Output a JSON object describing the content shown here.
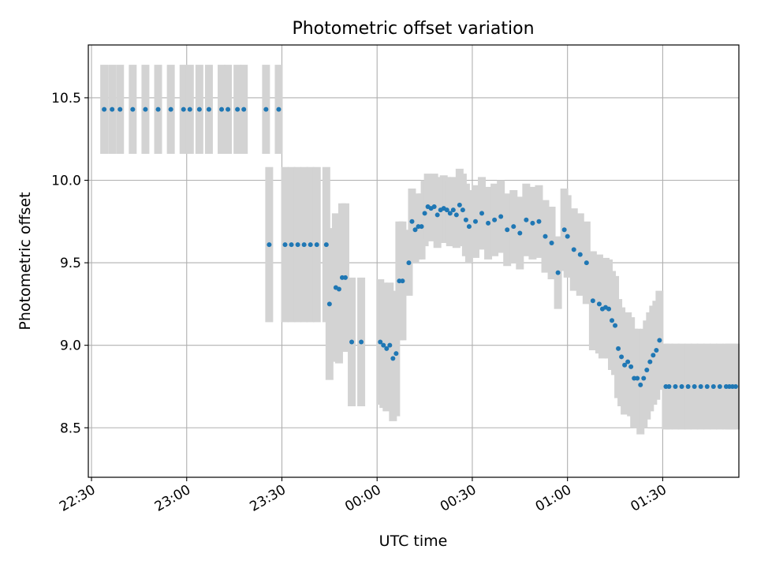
{
  "chart_data": {
    "type": "scatter",
    "title": "Photometric offset variation",
    "xlabel": "UTC time",
    "ylabel": "Photometric offset",
    "x_units": "minutes after 22:30 UTC",
    "xlim": [
      -1,
      204
    ],
    "ylim": [
      8.2,
      10.82
    ],
    "x_ticks": [
      {
        "value": 0,
        "label": "22:30"
      },
      {
        "value": 30,
        "label": "23:00"
      },
      {
        "value": 60,
        "label": "23:30"
      },
      {
        "value": 90,
        "label": "00:00"
      },
      {
        "value": 120,
        "label": "00:30"
      },
      {
        "value": 150,
        "label": "01:00"
      },
      {
        "value": 180,
        "label": "01:30"
      }
    ],
    "y_ticks": [
      {
        "value": 8.5,
        "label": "8.5"
      },
      {
        "value": 9.0,
        "label": "9.0"
      },
      {
        "value": 9.5,
        "label": "9.5"
      },
      {
        "value": 10.0,
        "label": "10.0"
      },
      {
        "value": 10.5,
        "label": "10.5"
      }
    ],
    "grid": true,
    "colors": {
      "points": "#1f77b4",
      "error_bars": "#d3d3d3",
      "grid": "#b0b0b0"
    },
    "series": [
      {
        "x": [
          4.0,
          6.5,
          9.0,
          13.0,
          17.0,
          21.0,
          25.0,
          29.0,
          31.0,
          34.0,
          37.0,
          41.0,
          43.0,
          46.0,
          48.0,
          55.0,
          59.0
        ],
        "y": [
          10.43,
          10.43,
          10.43,
          10.43,
          10.43,
          10.43,
          10.43,
          10.43,
          10.43,
          10.43,
          10.43,
          10.43,
          10.43,
          10.43,
          10.43,
          10.43,
          10.43
        ],
        "err": [
          0.27,
          0.27,
          0.27,
          0.27,
          0.27,
          0.27,
          0.27,
          0.27,
          0.27,
          0.27,
          0.27,
          0.27,
          0.27,
          0.27,
          0.27,
          0.27,
          0.27
        ]
      },
      {
        "x": [
          56.0,
          61.0,
          63.0,
          65.0,
          67.0,
          69.0,
          71.0,
          74.0,
          75.0,
          77.0,
          78.0,
          79.0,
          80.0,
          82.0,
          85.0
        ],
        "y": [
          9.61,
          9.61,
          9.61,
          9.61,
          9.61,
          9.61,
          9.61,
          9.61,
          9.25,
          9.35,
          9.34,
          9.41,
          9.41,
          9.02,
          9.02
        ],
        "err": [
          0.47,
          0.47,
          0.47,
          0.47,
          0.47,
          0.47,
          0.47,
          0.47,
          0.46,
          0.45,
          0.45,
          0.45,
          0.45,
          0.39,
          0.39
        ]
      },
      {
        "x": [
          91.0,
          92.0,
          93.0,
          94.0,
          95.0,
          96.0,
          97.0,
          98.0,
          100.0,
          101.0,
          102.0,
          103.0,
          104.0,
          105.0,
          106.0,
          107.0,
          108.0,
          109.0,
          110.0,
          111.0,
          112.0,
          113.0,
          114.0,
          115.0,
          116.0,
          117.0,
          118.0,
          119.0,
          121.0,
          123.0,
          125.0,
          127.0,
          129.0,
          131.0,
          133.0,
          135.0,
          137.0,
          139.0,
          141.0,
          143.0,
          145.0,
          147.0,
          149.0,
          150.0,
          152.0,
          154.0,
          156.0,
          158.0,
          160.0,
          161.0,
          162.0,
          163.0,
          164.0,
          165.0,
          166.0,
          167.0,
          168.0,
          169.0,
          170.0,
          171.0,
          172.0,
          173.0,
          174.0,
          175.0,
          176.0,
          177.0,
          178.0,
          179.0
        ],
        "y": [
          9.02,
          9.0,
          8.98,
          9.0,
          8.92,
          8.95,
          9.39,
          9.39,
          9.5,
          9.75,
          9.7,
          9.72,
          9.72,
          9.8,
          9.84,
          9.83,
          9.84,
          9.79,
          9.82,
          9.83,
          9.82,
          9.8,
          9.82,
          9.79,
          9.85,
          9.82,
          9.76,
          9.72,
          9.75,
          9.8,
          9.74,
          9.76,
          9.78,
          9.7,
          9.72,
          9.68,
          9.76,
          9.74,
          9.75,
          9.66,
          9.62,
          9.44,
          9.7,
          9.66,
          9.58,
          9.55,
          9.5,
          9.27,
          9.25,
          9.22,
          9.23,
          9.22,
          9.15,
          9.12,
          8.98,
          8.93,
          8.88,
          8.9,
          8.87,
          8.8,
          8.8,
          8.76,
          8.8,
          8.85,
          8.9,
          8.94,
          8.97,
          9.03
        ],
        "err": [
          0.38,
          0.38,
          0.38,
          0.38,
          0.38,
          0.38,
          0.36,
          0.36,
          0.2,
          0.2,
          0.2,
          0.2,
          0.2,
          0.2,
          0.2,
          0.2,
          0.2,
          0.2,
          0.2,
          0.2,
          0.2,
          0.2,
          0.2,
          0.2,
          0.22,
          0.22,
          0.22,
          0.22,
          0.22,
          0.22,
          0.22,
          0.22,
          0.22,
          0.22,
          0.22,
          0.22,
          0.22,
          0.22,
          0.22,
          0.22,
          0.22,
          0.22,
          0.25,
          0.25,
          0.25,
          0.25,
          0.25,
          0.3,
          0.3,
          0.3,
          0.3,
          0.3,
          0.3,
          0.3,
          0.3,
          0.3,
          0.3,
          0.3,
          0.3,
          0.3,
          0.3,
          0.3,
          0.3,
          0.3,
          0.3,
          0.3,
          0.3,
          0.3
        ]
      },
      {
        "x": [
          181.0,
          182.0,
          184.0,
          186.0,
          188.0,
          190.0,
          192.0,
          194.0,
          196.0,
          198.0,
          200.0,
          201.0,
          202.0,
          203.0
        ],
        "y": [
          8.75,
          8.75,
          8.75,
          8.75,
          8.75,
          8.75,
          8.75,
          8.75,
          8.75,
          8.75,
          8.75,
          8.75,
          8.75,
          8.75
        ],
        "err": [
          0.26,
          0.26,
          0.26,
          0.26,
          0.26,
          0.26,
          0.26,
          0.26,
          0.26,
          0.26,
          0.26,
          0.26,
          0.26,
          0.26
        ]
      }
    ]
  }
}
